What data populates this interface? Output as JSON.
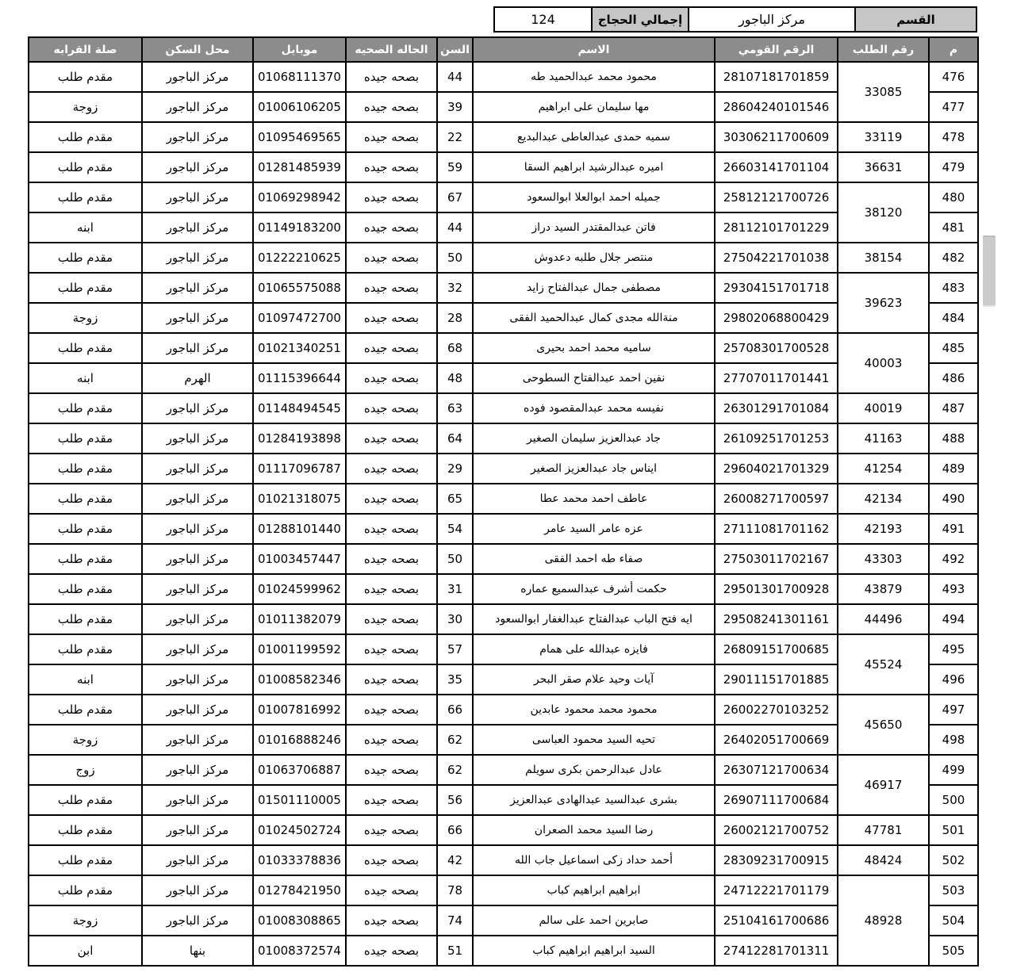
{
  "colors": {
    "band_label_bg": "#c6c6c6",
    "table_header_bg": "#8c8c8c",
    "table_header_text": "#ffffff",
    "border": "#000000",
    "scrollbar_thumb": "#cbcbcb"
  },
  "top_band": {
    "section_label": "القسم",
    "section_value": "مركز الباجور",
    "total_label": "إجمالي الحجاج",
    "total_value": "124"
  },
  "table": {
    "headers": {
      "serial": "م",
      "request_no": "رقم الطلب",
      "national_id": "الرقم القومي",
      "name": "الاسم",
      "age": "السن",
      "health": "الحاله الصحيه",
      "mobile": "موبايل",
      "residence": "محل السكن",
      "relation": "صلة القرابه"
    },
    "rows": [
      {
        "m": "476",
        "request": "33085",
        "request_span": 2,
        "national_id": "28107181701859",
        "name": "محمود محمد عبدالحميد طه",
        "age": "44",
        "health": "بصحه جيده",
        "mobile": "01068111370",
        "residence": "مركز الباجور",
        "relation": "مقدم طلب"
      },
      {
        "m": "477",
        "request": null,
        "national_id": "28604240101546",
        "name": "مها سليمان على ابراهيم",
        "age": "39",
        "health": "بصحه جيده",
        "mobile": "01006106205",
        "residence": "مركز الباجور",
        "relation": "زوجة"
      },
      {
        "m": "478",
        "request": "33119",
        "national_id": "30306211700609",
        "name": "سميه حمدى عبدالعاطى عبدالبديع",
        "age": "22",
        "health": "بصحه جيده",
        "mobile": "01095469565",
        "residence": "مركز الباجور",
        "relation": "مقدم طلب"
      },
      {
        "m": "479",
        "request": "36631",
        "national_id": "26603141701104",
        "name": "اميره عبدالرشيد ابراهيم السقا",
        "age": "59",
        "health": "بصحه جيده",
        "mobile": "01281485939",
        "residence": "مركز الباجور",
        "relation": "مقدم طلب"
      },
      {
        "m": "480",
        "request": "38120",
        "request_span": 2,
        "national_id": "25812121700726",
        "name": "جميله احمد ابوالعلا ابوالسعود",
        "age": "67",
        "health": "بصحه جيده",
        "mobile": "01069298942",
        "residence": "مركز الباجور",
        "relation": "مقدم طلب"
      },
      {
        "m": "481",
        "request": null,
        "national_id": "28112101701229",
        "name": "فاتن عبدالمقتدر السيد دراز",
        "age": "44",
        "health": "بصحه جيده",
        "mobile": "01149183200",
        "residence": "مركز الباجور",
        "relation": "ابنه"
      },
      {
        "m": "482",
        "request": "38154",
        "national_id": "27504221701038",
        "name": "منتصر جلال طلبه دعدوش",
        "age": "50",
        "health": "بصحه جيده",
        "mobile": "01222210625",
        "residence": "مركز الباجور",
        "relation": "مقدم طلب"
      },
      {
        "m": "483",
        "request": "39623",
        "request_span": 2,
        "national_id": "29304151701718",
        "name": "مصطفى جمال عبدالفتاح زايد",
        "age": "32",
        "health": "بصحه جيده",
        "mobile": "01065575088",
        "residence": "مركز الباجور",
        "relation": "مقدم طلب"
      },
      {
        "m": "484",
        "request": null,
        "national_id": "29802068800429",
        "name": "منةالله مجدى كمال عبدالحميد الفقى",
        "age": "28",
        "health": "بصحه جيده",
        "mobile": "01097472700",
        "residence": "مركز الباجور",
        "relation": "زوجة"
      },
      {
        "m": "485",
        "request": "40003",
        "request_span": 2,
        "national_id": "25708301700528",
        "name": "ساميه محمد احمد بحيرى",
        "age": "68",
        "health": "بصحه جيده",
        "mobile": "01021340251",
        "residence": "مركز الباجور",
        "relation": "مقدم طلب"
      },
      {
        "m": "486",
        "request": null,
        "national_id": "27707011701441",
        "name": "نفين احمد عبدالفتاح السطوحى",
        "age": "48",
        "health": "بصحه جيده",
        "mobile": "01115396644",
        "residence": "الهرم",
        "relation": "ابنه"
      },
      {
        "m": "487",
        "request": "40019",
        "national_id": "26301291701084",
        "name": "نفيسه محمد عبدالمقصود فوده",
        "age": "63",
        "health": "بصحه جيده",
        "mobile": "01148494545",
        "residence": "مركز الباجور",
        "relation": "مقدم طلب"
      },
      {
        "m": "488",
        "request": "41163",
        "national_id": "26109251701253",
        "name": "جاد عبدالعزيز سليمان الصغير",
        "age": "64",
        "health": "بصحه جيده",
        "mobile": "01284193898",
        "residence": "مركز الباجور",
        "relation": "مقدم طلب"
      },
      {
        "m": "489",
        "request": "41254",
        "national_id": "29604021701329",
        "name": "ايناس جاد عبدالعزيز الصغير",
        "age": "29",
        "health": "بصحه جيده",
        "mobile": "01117096787",
        "residence": "مركز الباجور",
        "relation": "مقدم طلب"
      },
      {
        "m": "490",
        "request": "42134",
        "national_id": "26008271700597",
        "name": "عاطف احمد محمد عطا",
        "age": "65",
        "health": "بصحه جيده",
        "mobile": "01021318075",
        "residence": "مركز الباجور",
        "relation": "مقدم طلب"
      },
      {
        "m": "491",
        "request": "42193",
        "national_id": "27111081701162",
        "name": "عزه عامر السيد عامر",
        "age": "54",
        "health": "بصحه جيده",
        "mobile": "01288101440",
        "residence": "مركز الباجور",
        "relation": "مقدم طلب"
      },
      {
        "m": "492",
        "request": "43303",
        "national_id": "27503011702167",
        "name": "صفاء طه احمد الفقى",
        "age": "50",
        "health": "بصحه جيده",
        "mobile": "01003457447",
        "residence": "مركز الباجور",
        "relation": "مقدم طلب"
      },
      {
        "m": "493",
        "request": "43879",
        "national_id": "29501301700928",
        "name": "حكمت أشرف عبدالسميع عماره",
        "age": "31",
        "health": "بصحه جيده",
        "mobile": "01024599962",
        "residence": "مركز الباجور",
        "relation": "مقدم طلب"
      },
      {
        "m": "494",
        "request": "44496",
        "national_id": "29508241301161",
        "name": "ايه فتح الباب عبدالفتاح عبدالغفار ابوالسعود",
        "age": "30",
        "health": "بصحه جيده",
        "mobile": "01011382079",
        "residence": "مركز الباجور",
        "relation": "مقدم طلب"
      },
      {
        "m": "495",
        "request": "45524",
        "request_span": 2,
        "national_id": "26809151700685",
        "name": "فايزه عبدالله على همام",
        "age": "57",
        "health": "بصحه جيده",
        "mobile": "01001199592",
        "residence": "مركز الباجور",
        "relation": "مقدم طلب"
      },
      {
        "m": "496",
        "request": null,
        "national_id": "29011151701885",
        "name": "آيات وحيد علام صقر البحر",
        "age": "35",
        "health": "بصحه جيده",
        "mobile": "01008582346",
        "residence": "مركز الباجور",
        "relation": "ابنه"
      },
      {
        "m": "497",
        "request": "45650",
        "request_span": 2,
        "national_id": "26002270103252",
        "name": "محمود محمد محمود عابدين",
        "age": "66",
        "health": "بصحه جيده",
        "mobile": "01007816992",
        "residence": "مركز الباجور",
        "relation": "مقدم طلب"
      },
      {
        "m": "498",
        "request": null,
        "national_id": "26402051700669",
        "name": "تحيه السيد محمود العباسى",
        "age": "62",
        "health": "بصحه جيده",
        "mobile": "01016888246",
        "residence": "مركز الباجور",
        "relation": "زوجة"
      },
      {
        "m": "499",
        "request": "46917",
        "request_span": 2,
        "national_id": "26307121700634",
        "name": "عادل عبدالرحمن بكرى سويلم",
        "age": "62",
        "health": "بصحه جيده",
        "mobile": "01063706887",
        "residence": "مركز الباجور",
        "relation": "زوج"
      },
      {
        "m": "500",
        "request": null,
        "national_id": "26907111700684",
        "name": "بشرى عبدالسيد عبدالهادى عبدالعزيز",
        "age": "56",
        "health": "بصحه جيده",
        "mobile": "01501110005",
        "residence": "مركز الباجور",
        "relation": "مقدم طلب"
      },
      {
        "m": "501",
        "request": "47781",
        "national_id": "26002121700752",
        "name": "رضا السيد محمد الصعران",
        "age": "66",
        "health": "بصحه جيده",
        "mobile": "01024502724",
        "residence": "مركز الباجور",
        "relation": "مقدم طلب"
      },
      {
        "m": "502",
        "request": "48424",
        "national_id": "28309231700915",
        "name": "أحمد حداد زكى اسماعيل جاب الله",
        "age": "42",
        "health": "بصحه جيده",
        "mobile": "01033378836",
        "residence": "مركز الباجور",
        "relation": "مقدم طلب"
      },
      {
        "m": "503",
        "request": "48928",
        "request_span": 3,
        "national_id": "24712221701179",
        "name": "ابراهيم ابراهيم كباب",
        "age": "78",
        "health": "بصحه جيده",
        "mobile": "01278421950",
        "residence": "مركز الباجور",
        "relation": "مقدم طلب"
      },
      {
        "m": "504",
        "request": null,
        "national_id": "25104161700686",
        "name": "صابرين احمد على سالم",
        "age": "74",
        "health": "بصحه جيده",
        "mobile": "01008308865",
        "residence": "مركز الباجور",
        "relation": "زوجة"
      },
      {
        "m": "505",
        "request": null,
        "national_id": "27412281701311",
        "name": "السيد ابراهيم ابراهيم كباب",
        "age": "51",
        "health": "بصحه جيده",
        "mobile": "01008372574",
        "residence": "بنها",
        "relation": "ابن"
      }
    ]
  }
}
